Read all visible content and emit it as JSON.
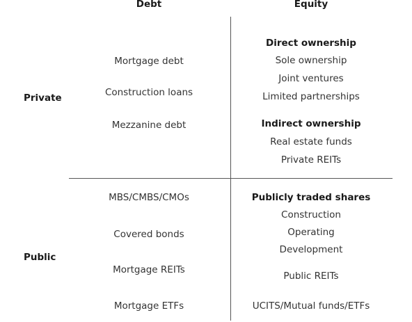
{
  "columns": {
    "debt": "Debt",
    "equity": "Equity"
  },
  "rows": {
    "private": "Private",
    "public": "Public"
  },
  "private_debt": [
    "Mortgage debt",
    "Construction loans",
    "Mezzanine debt"
  ],
  "private_equity": {
    "direct_heading": "Direct ownership",
    "direct_items": [
      "Sole ownership",
      "Joint ventures",
      "Limited partnerships"
    ],
    "indirect_heading": "Indirect ownership",
    "indirect_items": [
      "Real estate funds",
      "Private REITs"
    ]
  },
  "public_debt": [
    "MBS/CMBS/CMOs",
    "Covered bonds",
    "Mortgage REITs",
    "Mortgage ETFs"
  ],
  "public_equity": {
    "heading": "Publicly traded shares",
    "items": [
      "Construction",
      "Operating",
      "Development",
      "Public REITs",
      "UCITS/Mutual funds/ETFs"
    ]
  }
}
